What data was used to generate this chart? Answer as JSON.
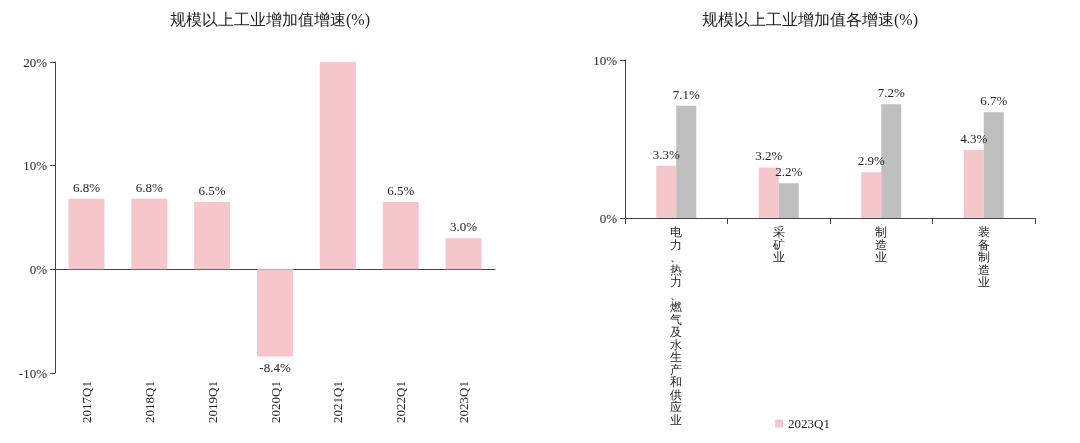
{
  "chart_data": [
    {
      "type": "bar",
      "title": "规模以上工业增加值增速(%)",
      "categories": [
        "2017Q1",
        "2018Q1",
        "2019Q1",
        "2020Q1",
        "2021Q1",
        "2022Q1",
        "2023Q1"
      ],
      "series": [
        {
          "color": "#f5c6cc",
          "values": [
            6.8,
            6.8,
            6.5,
            -8.4,
            20,
            6.5,
            3.0
          ],
          "value_labels": [
            "6.8%",
            "6.8%",
            "6.5%",
            "-8.4%",
            null,
            "6.5%",
            "3.0%"
          ]
        }
      ],
      "ylim": [
        -10,
        20
      ],
      "yticks": [
        {
          "value": -10,
          "label": "-10%"
        },
        {
          "value": 0,
          "label": "0%"
        },
        {
          "value": 10,
          "label": "10%"
        },
        {
          "value": 20,
          "label": "20%"
        }
      ],
      "legend": false
    },
    {
      "type": "bar",
      "title": "规模以上工业增加值各增速(%)",
      "categories": [
        "电力、热力、燃气及水生产和供应业",
        "采矿业",
        "制造业",
        "装备制造业"
      ],
      "series": [
        {
          "name": "2023Q1",
          "color": "#f5c6cc",
          "values": [
            3.3,
            3.2,
            2.9,
            4.3
          ],
          "value_labels": [
            "3.3%",
            "3.2%",
            "2.9%",
            "4.3%"
          ]
        },
        {
          "color": "#bfbfbf",
          "values": [
            7.1,
            2.2,
            7.2,
            6.7
          ],
          "value_labels": [
            "7.1%",
            "2.2%",
            "7.2%",
            "6.7%"
          ]
        }
      ],
      "ylim": [
        0,
        10
      ],
      "yticks": [
        {
          "value": 0,
          "label": "0%"
        },
        {
          "value": 10,
          "label": "10%"
        }
      ],
      "legend": "bottom"
    }
  ]
}
